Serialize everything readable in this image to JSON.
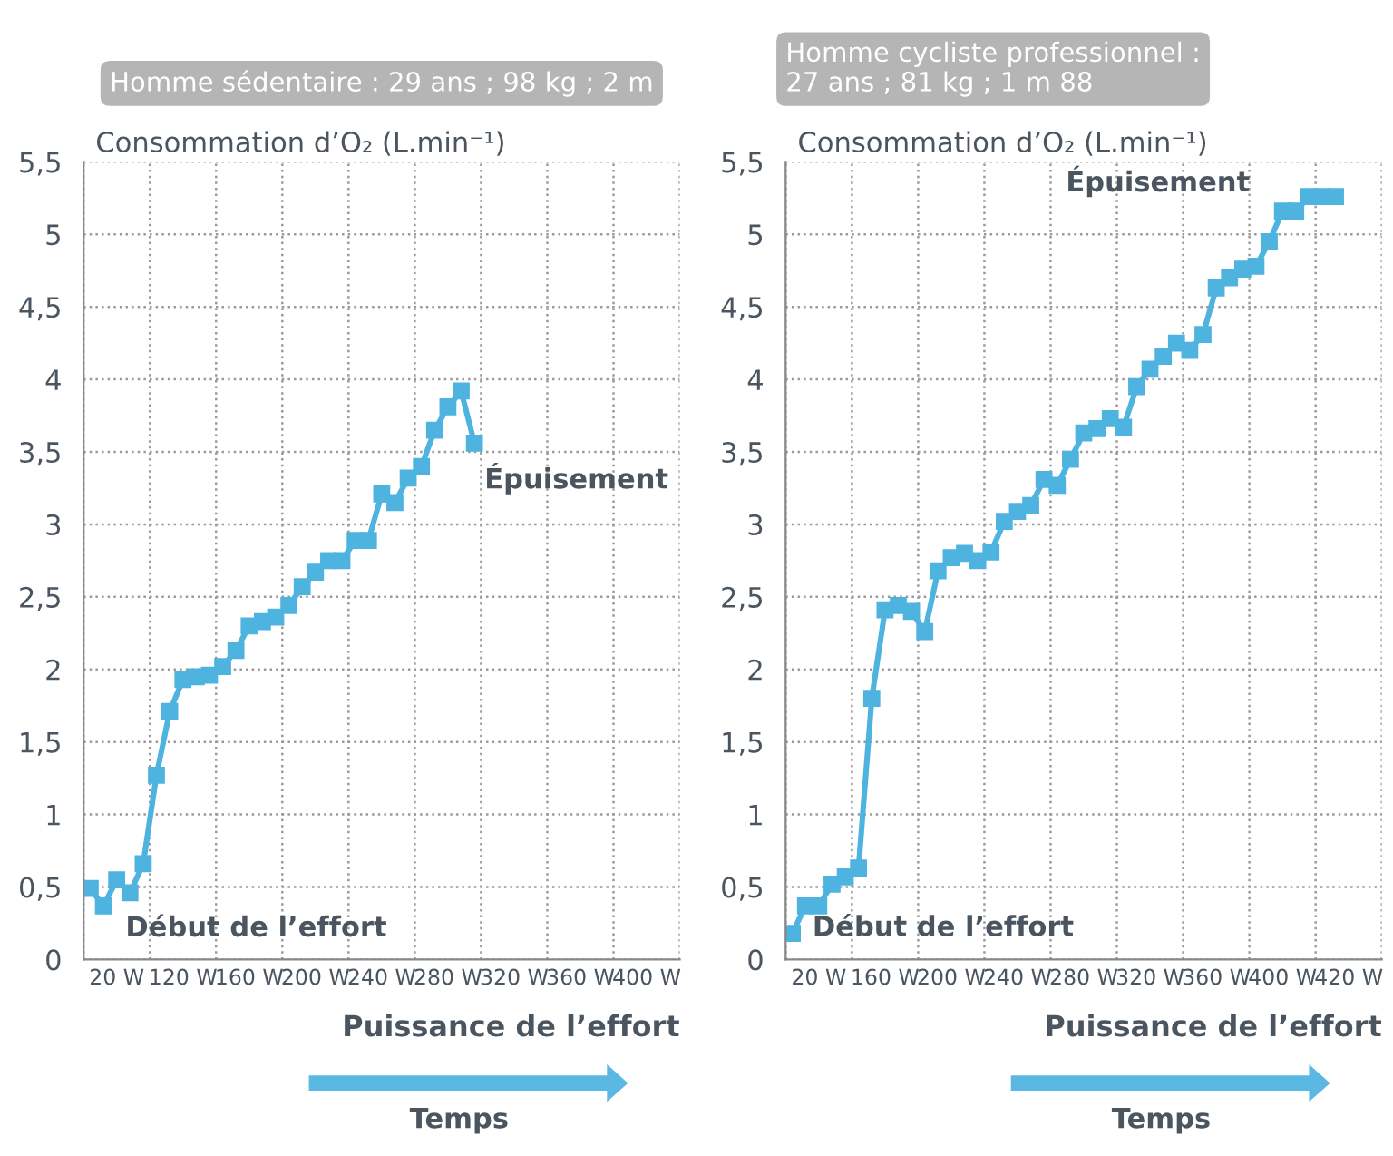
{
  "chart_data": [
    {
      "type": "line",
      "title": "Homme sédentaire : 29 ans ; 98 kg ; 2 m",
      "ylabel": "Consommation d’O₂ (L.min⁻¹)",
      "xlabel": "Puissance de l’effort",
      "categories": [
        null,
        null,
        "20 W",
        null,
        null,
        null,
        null,
        "120 W",
        null,
        null,
        null,
        null,
        "160 W",
        null,
        null,
        null,
        null,
        "200 W",
        null,
        null,
        null,
        null,
        "240 W",
        null,
        null,
        null,
        null,
        "280 W",
        null,
        null,
        null,
        null,
        "320 W",
        null,
        null,
        null,
        null,
        "360 W",
        null,
        null,
        null,
        null,
        "400 W",
        null,
        null
      ],
      "ylim": [
        0,
        5.5
      ],
      "yticks": [
        0,
        {
          "value": 0.5,
          "label": "0,5"
        },
        1,
        {
          "value": 1.5,
          "label": "1,5"
        },
        2,
        {
          "value": 2.5,
          "label": "2,5"
        },
        3,
        {
          "value": 3.5,
          "label": "3,5"
        },
        4,
        {
          "value": 4.5,
          "label": "4,5"
        },
        5,
        {
          "value": 5.5,
          "label": "5,5"
        }
      ],
      "grid": true,
      "marker": "square",
      "line_style": "solid",
      "series": [
        {
          "color": "#4fb3e0",
          "values": [
            0.49,
            0.37,
            0.55,
            0.46,
            0.66,
            1.27,
            1.71,
            1.93,
            1.95,
            1.96,
            2.02,
            2.13,
            2.3,
            2.33,
            2.36,
            2.44,
            2.57,
            2.67,
            2.75,
            2.75,
            2.89,
            2.89,
            3.21,
            3.15,
            3.32,
            3.4,
            3.65,
            3.81,
            3.92,
            3.56,
            null,
            null,
            null,
            null,
            null,
            null,
            null,
            null,
            null,
            null,
            null,
            null,
            null,
            null,
            null
          ]
        }
      ],
      "annotations": [
        "Début de l’effort",
        "Épuisement",
        "Temps"
      ]
    },
    {
      "type": "line",
      "title": "Homme cycliste professionnel :\n27 ans ; 81 kg ; 1 m 88",
      "ylabel": "Consommation d’O₂ (L.min⁻¹)",
      "xlabel": "Puissance de l’effort",
      "categories": [
        null,
        null,
        "20 W",
        null,
        null,
        null,
        null,
        "160 W",
        null,
        null,
        null,
        null,
        "200 W",
        null,
        null,
        null,
        null,
        "240 W",
        null,
        null,
        null,
        null,
        "280 W",
        null,
        null,
        null,
        null,
        "320 W",
        null,
        null,
        null,
        null,
        "360 W",
        null,
        null,
        null,
        null,
        "400 W",
        null,
        null,
        null,
        null,
        "420 W",
        null,
        null
      ],
      "ylim": [
        0,
        5.5
      ],
      "yticks": [
        0,
        {
          "value": 0.5,
          "label": "0,5"
        },
        1,
        {
          "value": 1.5,
          "label": "1,5"
        },
        2,
        {
          "value": 2.5,
          "label": "2,5"
        },
        3,
        {
          "value": 3.5,
          "label": "3,5"
        },
        4,
        {
          "value": 4.5,
          "label": "4,5"
        },
        5,
        {
          "value": 5.5,
          "label": "5,5"
        }
      ],
      "grid": true,
      "marker": "square",
      "line_style": "solid",
      "series": [
        {
          "color": "#4fb3e0",
          "values": [
            0.18,
            0.37,
            0.37,
            0.52,
            0.57,
            0.63,
            1.8,
            2.41,
            2.44,
            2.4,
            2.26,
            2.68,
            2.77,
            2.8,
            2.75,
            2.81,
            3.02,
            3.09,
            3.13,
            3.31,
            3.27,
            3.45,
            3.63,
            3.66,
            3.73,
            3.67,
            3.95,
            4.07,
            4.16,
            4.25,
            4.2,
            4.31,
            4.63,
            4.7,
            4.76,
            4.78,
            4.95,
            5.16,
            5.16,
            5.26,
            5.26,
            5.26,
            null,
            null,
            null
          ]
        }
      ],
      "annotations": [
        "Début de l’effort",
        "Épuisement",
        "Temps"
      ]
    }
  ]
}
